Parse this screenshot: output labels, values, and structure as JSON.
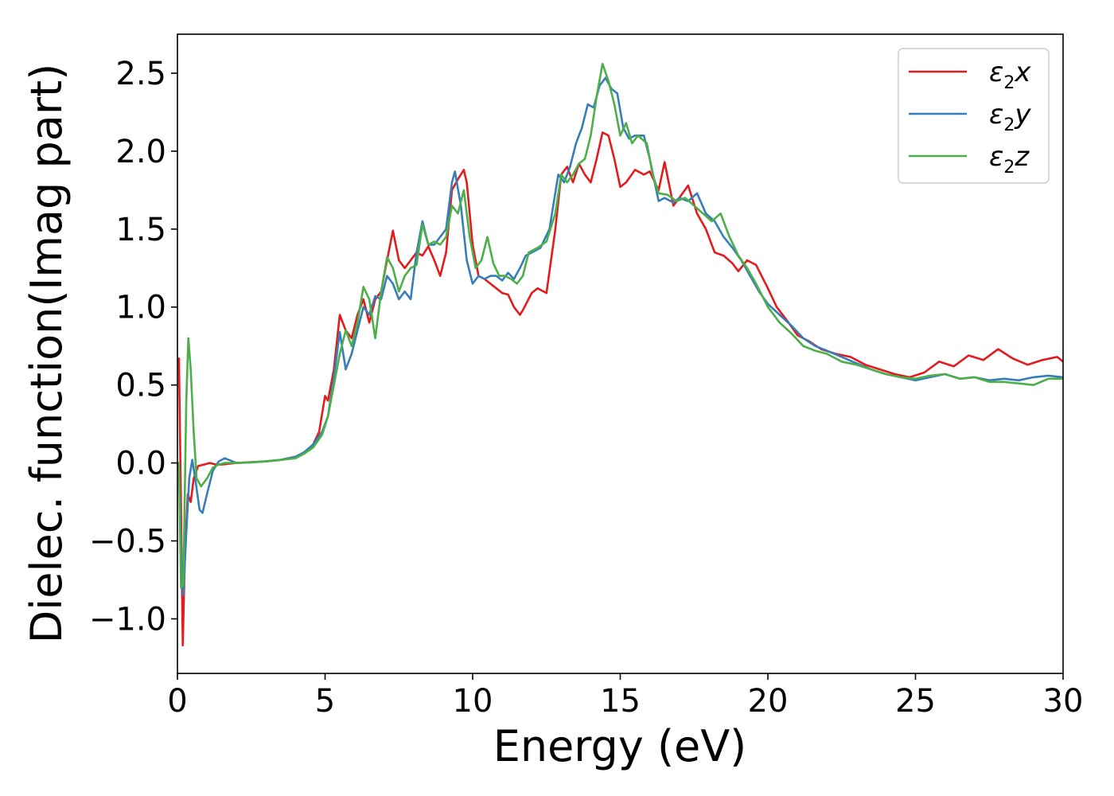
{
  "chart_data": {
    "type": "line",
    "title": "",
    "xlabel": "Energy (eV)",
    "ylabel": "Dielec. function(Imag part)",
    "xlim": [
      0,
      30
    ],
    "ylim": [
      -1.35,
      2.75
    ],
    "xticks": [
      0,
      5,
      10,
      15,
      20,
      25,
      30
    ],
    "xtick_labels": [
      "0",
      "5",
      "10",
      "15",
      "20",
      "25",
      "30"
    ],
    "yticks": [
      -1.0,
      -0.5,
      0.0,
      0.5,
      1.0,
      1.5,
      2.0,
      2.5
    ],
    "ytick_labels": [
      "−1.0",
      "−0.5",
      "0.0",
      "0.5",
      "1.0",
      "1.5",
      "2.0",
      "2.5"
    ],
    "grid": false,
    "legend": "top-right",
    "series": [
      {
        "name": "ε",
        "name_sub": "2",
        "name_suffix": "x",
        "color": "#e41a1c",
        "x": [
          0.05,
          0.12,
          0.18,
          0.25,
          0.35,
          0.45,
          0.55,
          0.7,
          0.9,
          1.1,
          1.3,
          1.5,
          2.0,
          2.5,
          3.0,
          3.5,
          4.0,
          4.3,
          4.6,
          4.8,
          5.0,
          5.1,
          5.3,
          5.5,
          5.7,
          5.9,
          6.1,
          6.3,
          6.5,
          6.7,
          6.9,
          7.1,
          7.3,
          7.5,
          7.7,
          7.9,
          8.1,
          8.3,
          8.5,
          8.7,
          8.9,
          9.1,
          9.3,
          9.5,
          9.7,
          9.8,
          10.0,
          10.2,
          10.4,
          10.6,
          10.8,
          11.0,
          11.2,
          11.4,
          11.6,
          11.7,
          12.0,
          12.2,
          12.5,
          12.8,
          13.0,
          13.2,
          13.4,
          13.6,
          13.8,
          14.0,
          14.2,
          14.4,
          14.6,
          14.8,
          15.0,
          15.2,
          15.5,
          15.8,
          16.0,
          16.3,
          16.5,
          16.8,
          17.0,
          17.3,
          17.6,
          17.9,
          18.2,
          18.5,
          18.8,
          19.0,
          19.3,
          19.6,
          20.0,
          20.3,
          20.7,
          21.0,
          21.4,
          21.8,
          22.3,
          22.8,
          23.3,
          23.8,
          24.3,
          24.8,
          25.3,
          25.8,
          26.3,
          26.8,
          27.3,
          27.8,
          28.3,
          28.8,
          29.3,
          29.8,
          30.0
        ],
        "values": [
          0.67,
          -0.3,
          -1.17,
          -0.6,
          -0.2,
          -0.25,
          -0.1,
          -0.02,
          -0.01,
          0.0,
          -0.01,
          -0.01,
          0.0,
          0.005,
          0.01,
          0.02,
          0.04,
          0.06,
          0.12,
          0.2,
          0.43,
          0.4,
          0.6,
          0.95,
          0.85,
          0.8,
          0.95,
          1.05,
          0.9,
          1.05,
          1.1,
          1.3,
          1.49,
          1.3,
          1.25,
          1.3,
          1.35,
          1.33,
          1.39,
          1.3,
          1.2,
          1.35,
          1.75,
          1.82,
          1.88,
          1.8,
          1.4,
          1.2,
          1.18,
          1.15,
          1.12,
          1.09,
          1.08,
          1.0,
          0.95,
          0.98,
          1.09,
          1.12,
          1.09,
          1.5,
          1.85,
          1.9,
          1.8,
          1.92,
          1.85,
          1.8,
          1.95,
          2.12,
          2.1,
          1.95,
          1.77,
          1.8,
          1.88,
          1.85,
          1.87,
          1.75,
          1.93,
          1.65,
          1.7,
          1.78,
          1.6,
          1.5,
          1.35,
          1.33,
          1.28,
          1.23,
          1.3,
          1.27,
          1.12,
          1.0,
          0.9,
          0.82,
          0.78,
          0.73,
          0.7,
          0.68,
          0.63,
          0.6,
          0.57,
          0.55,
          0.58,
          0.65,
          0.62,
          0.69,
          0.66,
          0.73,
          0.67,
          0.63,
          0.66,
          0.68,
          0.65
        ]
      },
      {
        "name": "ε",
        "name_sub": "2",
        "name_suffix": "y",
        "color": "#377eb8",
        "x": [
          0.05,
          0.12,
          0.2,
          0.3,
          0.4,
          0.5,
          0.6,
          0.75,
          0.85,
          1.0,
          1.2,
          1.4,
          1.6,
          2.0,
          2.5,
          3.0,
          3.5,
          4.0,
          4.3,
          4.6,
          4.9,
          5.1,
          5.3,
          5.5,
          5.7,
          5.9,
          6.1,
          6.3,
          6.5,
          6.7,
          6.9,
          7.1,
          7.3,
          7.5,
          7.7,
          7.9,
          8.1,
          8.3,
          8.5,
          8.7,
          8.9,
          9.1,
          9.3,
          9.4,
          9.6,
          9.8,
          10.0,
          10.2,
          10.4,
          10.6,
          10.8,
          11.0,
          11.2,
          11.4,
          11.6,
          11.8,
          12.0,
          12.3,
          12.6,
          12.9,
          13.1,
          13.3,
          13.5,
          13.7,
          13.9,
          14.1,
          14.3,
          14.5,
          14.7,
          14.9,
          15.1,
          15.3,
          15.5,
          15.8,
          16.0,
          16.3,
          16.5,
          16.8,
          17.0,
          17.3,
          17.6,
          17.9,
          18.2,
          18.5,
          18.8,
          19.1,
          19.4,
          19.7,
          20.0,
          20.4,
          20.8,
          21.2,
          21.6,
          22.0,
          22.5,
          23.0,
          23.5,
          24.0,
          24.5,
          25.0,
          25.5,
          26.0,
          26.5,
          27.0,
          27.5,
          28.0,
          28.5,
          29.0,
          29.5,
          30.0
        ],
        "values": [
          0.0,
          -0.55,
          -0.85,
          -0.45,
          -0.1,
          0.02,
          -0.1,
          -0.3,
          -0.32,
          -0.2,
          -0.05,
          0.01,
          0.03,
          0.0,
          0.003,
          0.01,
          0.02,
          0.04,
          0.07,
          0.12,
          0.2,
          0.3,
          0.55,
          0.84,
          0.6,
          0.7,
          0.85,
          1.0,
          0.95,
          1.07,
          1.05,
          1.2,
          1.15,
          1.05,
          1.1,
          1.05,
          1.35,
          1.55,
          1.4,
          1.4,
          1.45,
          1.5,
          1.8,
          1.87,
          1.65,
          1.3,
          1.15,
          1.2,
          1.18,
          1.2,
          1.2,
          1.17,
          1.22,
          1.18,
          1.25,
          1.33,
          1.35,
          1.38,
          1.5,
          1.85,
          1.8,
          1.9,
          2.05,
          2.15,
          2.3,
          2.28,
          2.42,
          2.47,
          2.4,
          2.37,
          2.15,
          2.08,
          2.1,
          2.1,
          1.95,
          1.68,
          1.7,
          1.67,
          1.7,
          1.68,
          1.73,
          1.6,
          1.55,
          1.45,
          1.38,
          1.3,
          1.2,
          1.1,
          1.02,
          0.95,
          0.88,
          0.8,
          0.75,
          0.72,
          0.68,
          0.64,
          0.6,
          0.57,
          0.55,
          0.53,
          0.55,
          0.57,
          0.54,
          0.55,
          0.53,
          0.54,
          0.53,
          0.55,
          0.56,
          0.55
        ]
      },
      {
        "name": "ε",
        "name_sub": "2",
        "name_suffix": "z",
        "color": "#4daf4a",
        "x": [
          0.05,
          0.12,
          0.2,
          0.3,
          0.37,
          0.45,
          0.55,
          0.65,
          0.8,
          1.0,
          1.2,
          1.4,
          1.6,
          2.0,
          2.5,
          3.0,
          3.5,
          4.0,
          4.3,
          4.6,
          4.9,
          5.1,
          5.3,
          5.5,
          5.7,
          5.9,
          6.1,
          6.3,
          6.5,
          6.7,
          6.9,
          7.1,
          7.3,
          7.5,
          7.7,
          7.9,
          8.1,
          8.3,
          8.5,
          8.7,
          8.9,
          9.1,
          9.3,
          9.5,
          9.7,
          9.9,
          10.1,
          10.3,
          10.5,
          10.7,
          10.9,
          11.1,
          11.3,
          11.5,
          11.7,
          11.9,
          12.2,
          12.5,
          12.8,
          13.0,
          13.2,
          13.4,
          13.6,
          13.8,
          14.0,
          14.2,
          14.4,
          14.6,
          14.8,
          15.0,
          15.2,
          15.4,
          15.6,
          15.9,
          16.1,
          16.3,
          16.6,
          16.9,
          17.2,
          17.5,
          17.8,
          18.1,
          18.4,
          18.7,
          19.0,
          19.3,
          19.6,
          20.0,
          20.4,
          20.8,
          21.2,
          21.6,
          22.0,
          22.5,
          23.0,
          23.5,
          24.0,
          24.5,
          25.0,
          25.5,
          26.0,
          26.5,
          27.0,
          27.5,
          28.0,
          28.5,
          29.0,
          29.5,
          30.0
        ],
        "values": [
          0.0,
          -0.8,
          -0.78,
          0.4,
          0.8,
          0.6,
          0.2,
          -0.1,
          -0.15,
          -0.1,
          -0.03,
          -0.01,
          0.0,
          0.0,
          0.004,
          0.01,
          0.02,
          0.03,
          0.06,
          0.1,
          0.18,
          0.3,
          0.5,
          0.7,
          0.85,
          0.75,
          0.9,
          1.13,
          1.05,
          0.8,
          1.1,
          1.32,
          1.25,
          1.1,
          1.2,
          1.25,
          1.27,
          1.53,
          1.4,
          1.42,
          1.4,
          1.45,
          1.65,
          1.6,
          1.75,
          1.45,
          1.25,
          1.3,
          1.45,
          1.28,
          1.2,
          1.2,
          1.18,
          1.15,
          1.2,
          1.35,
          1.38,
          1.42,
          1.6,
          1.85,
          1.8,
          1.85,
          1.92,
          1.95,
          2.1,
          2.35,
          2.56,
          2.45,
          2.3,
          2.1,
          2.18,
          2.05,
          2.1,
          2.05,
          1.85,
          1.73,
          1.72,
          1.68,
          1.7,
          1.65,
          1.6,
          1.55,
          1.6,
          1.45,
          1.33,
          1.25,
          1.15,
          1.0,
          0.9,
          0.83,
          0.75,
          0.72,
          0.7,
          0.65,
          0.63,
          0.6,
          0.57,
          0.55,
          0.54,
          0.56,
          0.57,
          0.54,
          0.55,
          0.52,
          0.52,
          0.51,
          0.5,
          0.54,
          0.54
        ]
      }
    ]
  }
}
